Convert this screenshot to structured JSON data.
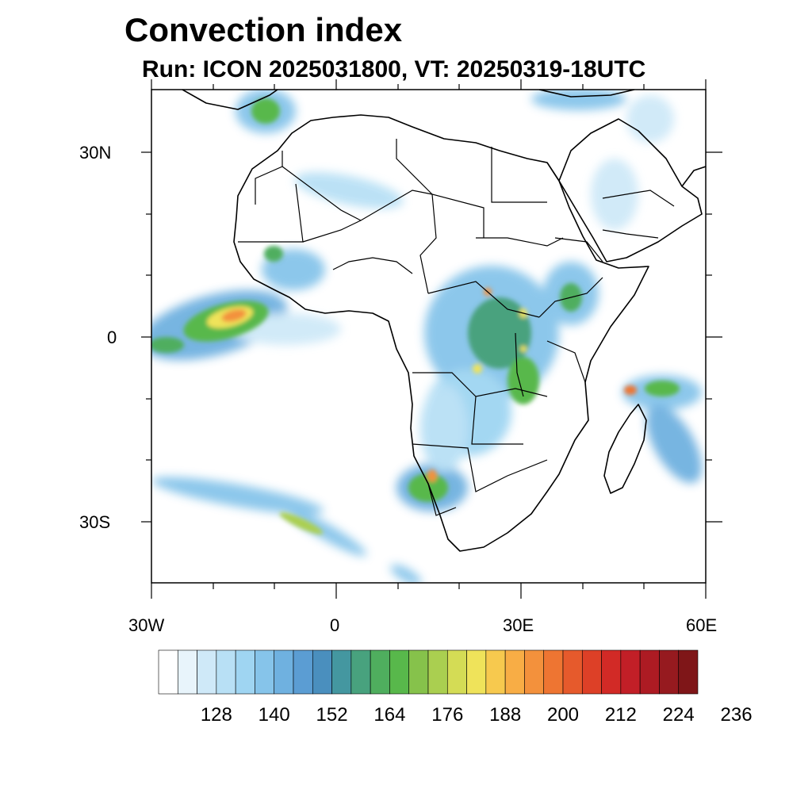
{
  "title": "Convection index",
  "subtitle": "Run: ICON 2025031800,  VT: 20250319-18UTC",
  "axes": {
    "lat_labels": [
      "30N",
      "0",
      "30S"
    ],
    "lon_labels": [
      "30W",
      "0",
      "30E",
      "60E"
    ]
  },
  "colorbar": {
    "labels": [
      "128",
      "140",
      "152",
      "164",
      "176",
      "188",
      "200",
      "212",
      "224",
      "236"
    ],
    "colors": [
      "#ffffff",
      "#e8f4fb",
      "#cfe9f8",
      "#b8e0f5",
      "#9fd5f2",
      "#86c4ea",
      "#6fb1e0",
      "#5b9dd3",
      "#4a8fbe",
      "#4497a0",
      "#48a27e",
      "#4fae5e",
      "#58b84b",
      "#86c24b",
      "#aacf50",
      "#d4dc55",
      "#efe35a",
      "#f7c94e",
      "#f8ad45",
      "#f3913c",
      "#ee7532",
      "#e65a2c",
      "#dd4027",
      "#d22a26",
      "#c21f27",
      "#ad1b23",
      "#961a1f",
      "#7f1618"
    ]
  },
  "map_data": {
    "region": "Africa",
    "lon_range": [
      -30,
      60
    ],
    "lat_range": [
      -40,
      40
    ],
    "variable": "Convection index"
  }
}
